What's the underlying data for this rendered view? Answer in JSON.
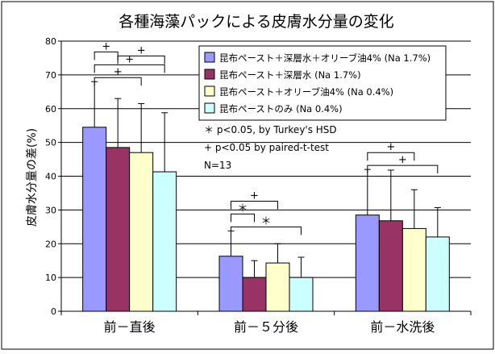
{
  "chart_data": {
    "type": "bar",
    "title": "各種海藻パックによる皮膚水分量の変化",
    "ylabel": "皮膚水分量の差(%)",
    "xlabel": "",
    "ylim": [
      0,
      80
    ],
    "yticks": [
      0,
      10,
      20,
      30,
      40,
      50,
      60,
      70,
      80
    ],
    "grid": true,
    "legend_position": "top-right",
    "categories": [
      "前－直後",
      "前－５分後",
      "前－水洗後"
    ],
    "series": [
      {
        "name": "昆布ペースト＋深層水＋オリーブ油4% (Na 1.7%)",
        "color": "#9999ff",
        "values": [
          54.5,
          16.3,
          28.5
        ],
        "errors": [
          13.5,
          7.5,
          13.5
        ]
      },
      {
        "name": "昆布ペースト＋深層水 (Na 1.7%)",
        "color": "#993366",
        "values": [
          48.5,
          10.0,
          26.8
        ],
        "errors": [
          14.5,
          5.0,
          15.0
        ]
      },
      {
        "name": "昆布ペースト＋オリーブ油4% (Na 0.4%)",
        "color": "#ffffcc",
        "values": [
          47.0,
          14.3,
          24.5
        ],
        "errors": [
          14.5,
          5.7,
          11.5
        ]
      },
      {
        "name": "昆布ペーストのみ (Na 0.4%)",
        "color": "#ccffff",
        "values": [
          41.3,
          10.0,
          22.0
        ],
        "errors": [
          17.5,
          6.0,
          8.7
        ]
      }
    ],
    "significance": [
      {
        "group": 0,
        "from": 0,
        "to": 2,
        "label": "+"
      },
      {
        "group": 0,
        "from": 0,
        "to": 3,
        "label": "+"
      },
      {
        "group": 0,
        "from": 0,
        "to": 1,
        "label": "+"
      },
      {
        "group": 0,
        "from": 1,
        "to": 3,
        "label": "+"
      },
      {
        "group": 1,
        "from": 0,
        "to": 3,
        "label": "＊"
      },
      {
        "group": 1,
        "from": 0,
        "to": 1,
        "label": "＊"
      },
      {
        "group": 1,
        "from": 0,
        "to": 2,
        "label": "+"
      },
      {
        "group": 2,
        "from": 0,
        "to": 3,
        "label": "+"
      },
      {
        "group": 2,
        "from": 0,
        "to": 2,
        "label": "+"
      }
    ],
    "notes": [
      "＊  p<0.05, by Turkey's HSD",
      "+   p<0.05  by paired-t-test",
      "N=13"
    ]
  }
}
